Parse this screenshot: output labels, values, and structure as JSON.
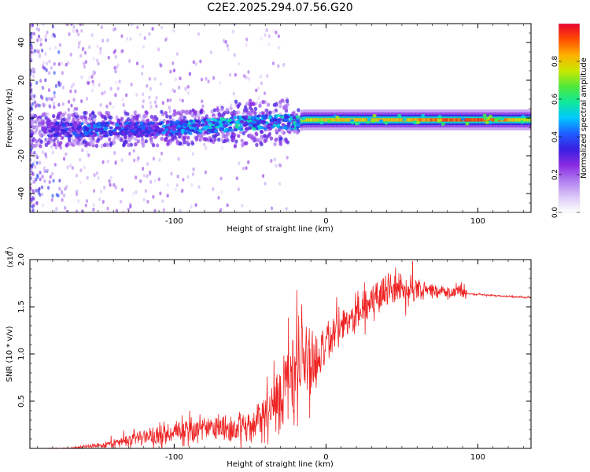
{
  "title": "C2E2.2025.294.07.56.G20",
  "chart_data": [
    {
      "type": "heatmap",
      "name": "spectrogram",
      "xlabel": "Height of straight line (km)",
      "ylabel": "Frequency (Hz)",
      "xlim": [
        -195,
        135
      ],
      "ylim": [
        -50,
        50
      ],
      "xticks": [
        -100,
        0,
        100
      ],
      "xticklabels": [
        "-100",
        "0",
        "100"
      ],
      "yticks": [
        -40,
        -20,
        0,
        20,
        40
      ],
      "yticklabels": [
        "-40",
        "-20",
        "0",
        "20",
        "40"
      ],
      "colorbar": {
        "label": "Normalized spectral amplitude",
        "range": [
          0,
          1
        ],
        "ticks": [
          0,
          0.2,
          0.4,
          0.6,
          0.8
        ],
        "ticklabels": [
          "0.0",
          "0.2",
          "0.4",
          "0.6",
          "0.8"
        ],
        "colormap": [
          "#ffffff",
          "#dcc8f8",
          "#b07ef0",
          "#8a2be2",
          "#3a1fe0",
          "#1f5cff",
          "#00c8ff",
          "#10e89a",
          "#4fe83a",
          "#c8e800",
          "#ffb000",
          "#ff4d00",
          "#e8002e"
        ]
      },
      "ridge": {
        "description_points": [
          {
            "x": -180,
            "f": -6,
            "amp": 0.35
          },
          {
            "x": -150,
            "f": -6,
            "amp": 0.45
          },
          {
            "x": -120,
            "f": -6,
            "amp": 0.4
          },
          {
            "x": -90,
            "f": -5,
            "amp": 0.5
          },
          {
            "x": -60,
            "f": -3,
            "amp": 0.55
          },
          {
            "x": -35,
            "f": -2,
            "amp": 0.5
          },
          {
            "x": -20,
            "f": -2,
            "amp": 0.55
          },
          {
            "x": -15,
            "f": -1,
            "amp": 0.8
          },
          {
            "x": 0,
            "f": -1,
            "amp": 0.85
          },
          {
            "x": 50,
            "f": -1,
            "amp": 0.85
          },
          {
            "x": 80,
            "f": -1,
            "amp": 0.95
          },
          {
            "x": 100,
            "f": -1,
            "amp": 1.0
          },
          {
            "x": 135,
            "f": -1,
            "amp": 0.75
          }
        ]
      }
    },
    {
      "type": "line",
      "name": "snr",
      "xlabel": "Height of straight line (km)",
      "ylabel": "SNR (10 * v/v)",
      "yscale_label": "(x10",
      "yscale_exponent": "4",
      "yscale_suffix": ")",
      "xlim": [
        -195,
        135
      ],
      "ylim": [
        0,
        2.0
      ],
      "xticks": [
        -100,
        0,
        100
      ],
      "xticklabels": [
        "-100",
        "0",
        "100"
      ],
      "yticks": [
        0.5,
        1.0,
        1.5,
        2.0
      ],
      "yticklabels": [
        "0.5",
        "1.0",
        "1.5",
        "2.0"
      ],
      "series": [
        {
          "name": "SNR",
          "color": "#ee2222",
          "x": [
            -195,
            -170,
            -150,
            -130,
            -110,
            -95,
            -80,
            -70,
            -60,
            -50,
            -42,
            -38,
            -35,
            -30,
            -25,
            -20,
            -15,
            -10,
            -5,
            0,
            10,
            20,
            30,
            40,
            50,
            60,
            70,
            80,
            90,
            92,
            93,
            100,
            110,
            120,
            135
          ],
          "mean": [
            0.0,
            0.0,
            0.03,
            0.08,
            0.15,
            0.2,
            0.22,
            0.2,
            0.2,
            0.25,
            0.3,
            0.45,
            0.5,
            0.65,
            0.75,
            0.85,
            0.95,
            0.75,
            0.85,
            1.05,
            1.3,
            1.45,
            1.55,
            1.65,
            1.68,
            1.7,
            1.68,
            1.66,
            1.66,
            1.66,
            1.64,
            1.63,
            1.62,
            1.61,
            1.6
          ],
          "spread": [
            0.0,
            0.01,
            0.03,
            0.07,
            0.12,
            0.16,
            0.17,
            0.14,
            0.15,
            0.2,
            0.25,
            0.4,
            0.45,
            0.55,
            0.65,
            0.7,
            0.65,
            0.45,
            0.4,
            0.3,
            0.22,
            0.2,
            0.2,
            0.18,
            0.17,
            0.15,
            0.1,
            0.07,
            0.1,
            0.1,
            0.01,
            0.01,
            0.01,
            0.01,
            0.01
          ]
        }
      ]
    }
  ]
}
